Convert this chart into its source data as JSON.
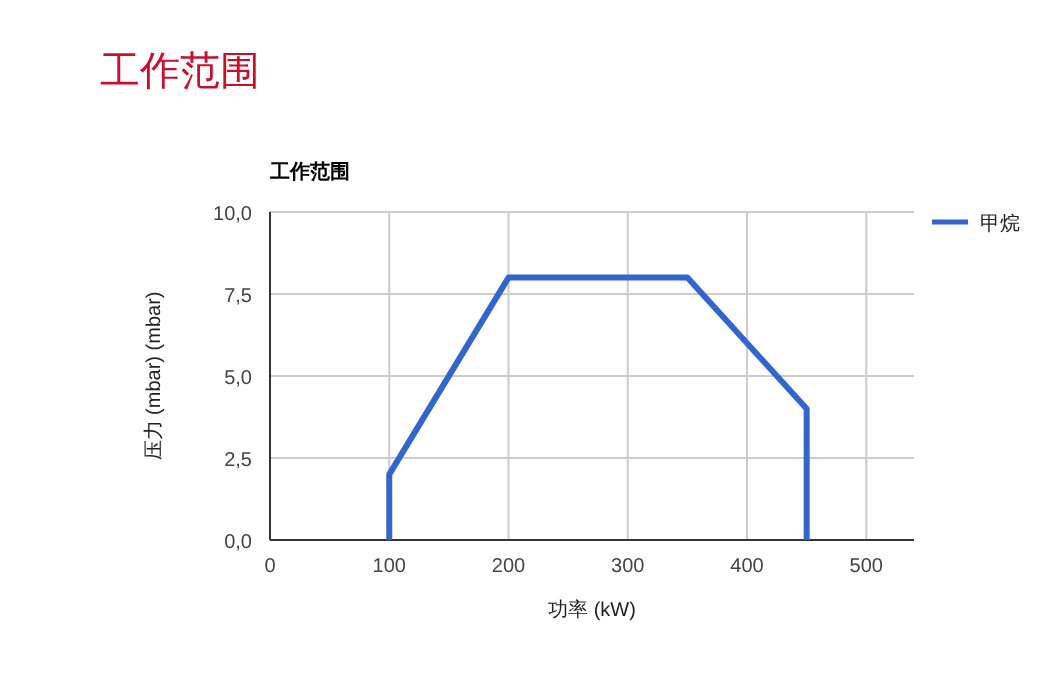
{
  "chart_data": {
    "type": "line",
    "title": "工作范围",
    "subtitle": "工作范围",
    "xlabel": "功率 (kW)",
    "ylabel": "压力 (mbar) (mbar)",
    "xlim": [
      0,
      540
    ],
    "xticks": [
      0,
      100,
      200,
      300,
      400,
      500
    ],
    "ylim": [
      0,
      10
    ],
    "yticks": [
      {
        "value": 0,
        "label": "0,0"
      },
      {
        "value": 2.5,
        "label": "2,5"
      },
      {
        "value": 5,
        "label": "5,0"
      },
      {
        "value": 7.5,
        "label": "7,5"
      },
      {
        "value": 10,
        "label": "10,0"
      }
    ],
    "grid": true,
    "legend": "top right",
    "marker": "none",
    "line_style": "solid",
    "series": [
      {
        "name": "甲烷",
        "color": "#3366cc",
        "x": [
          100,
          100,
          200,
          350,
          450,
          450
        ],
        "values": [
          0,
          2,
          8,
          8,
          4,
          0
        ]
      }
    ]
  }
}
